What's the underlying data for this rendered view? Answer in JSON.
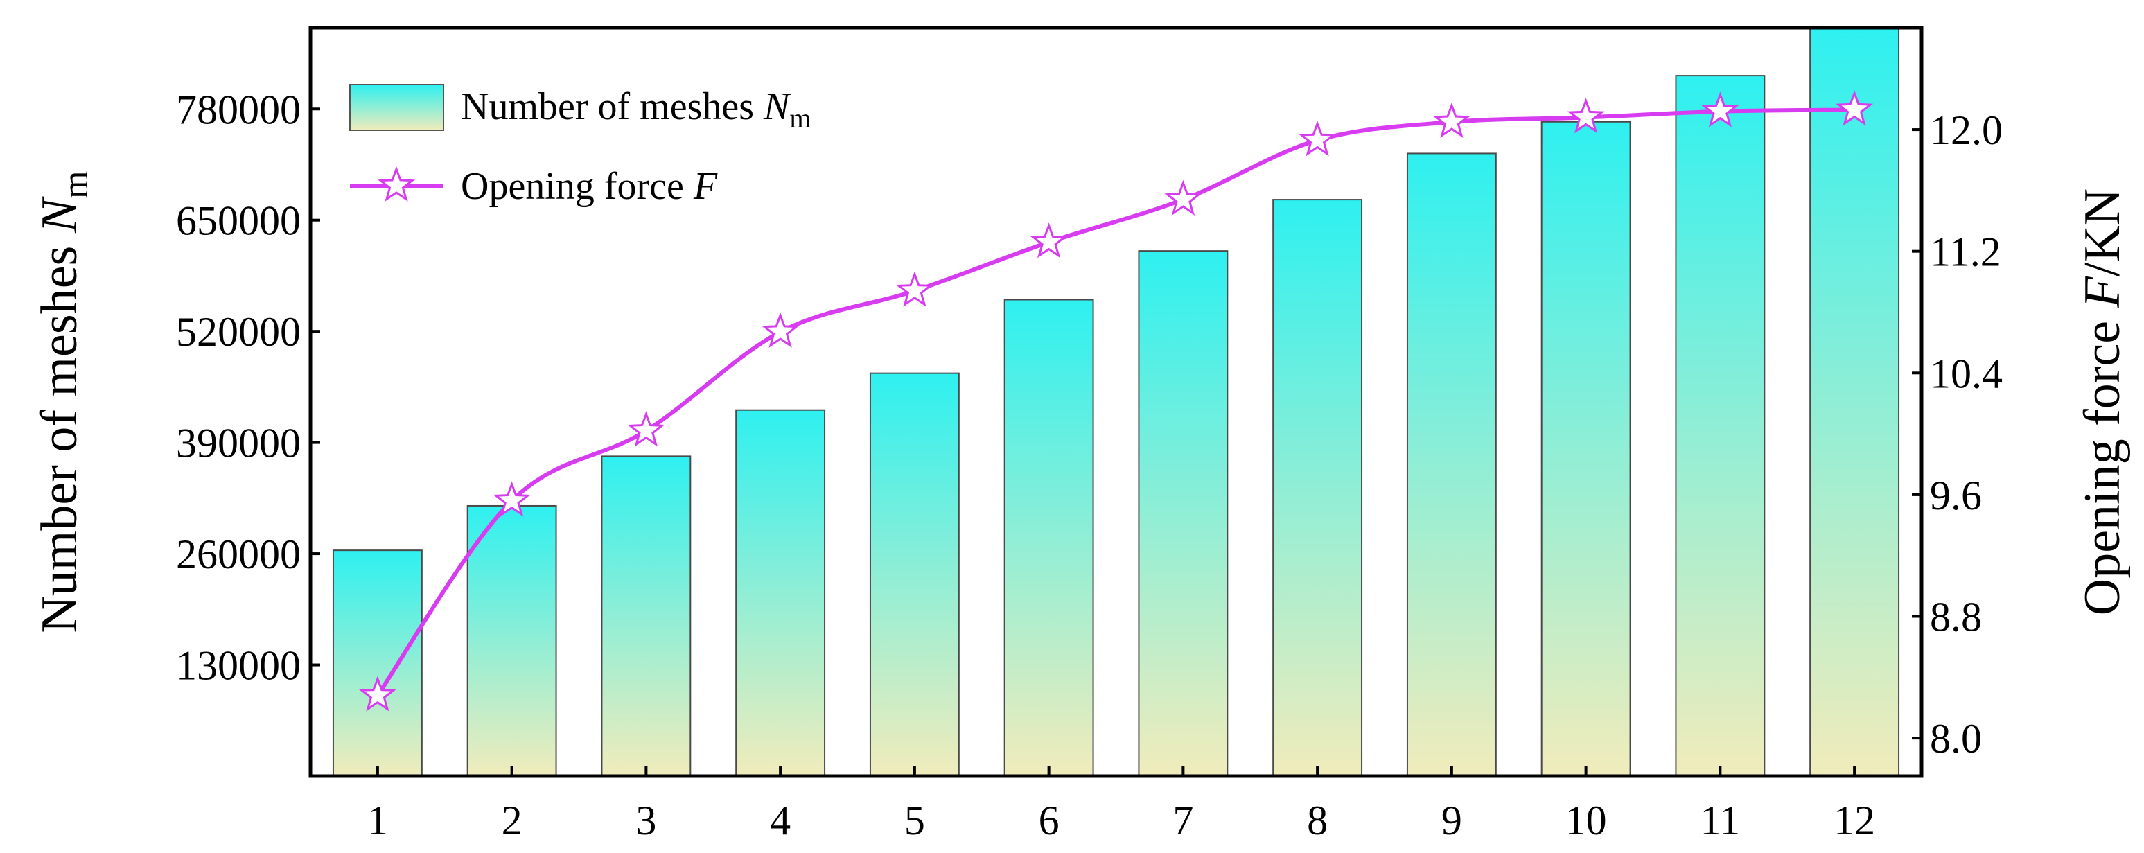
{
  "chart_data": {
    "type": "bar",
    "categories": [
      "1",
      "2",
      "3",
      "4",
      "5",
      "6",
      "7",
      "8",
      "9",
      "10",
      "11",
      "12"
    ],
    "series": [
      {
        "name": "Number of meshes N_m",
        "axis": "left",
        "kind": "bar",
        "values": [
          264000,
          316000,
          374000,
          428000,
          471000,
          557000,
          614000,
          674000,
          728000,
          765000,
          819000,
          875000
        ]
      },
      {
        "name": "Opening force F",
        "axis": "right",
        "kind": "line",
        "marker": "star",
        "values": [
          8.28,
          9.56,
          10.02,
          10.67,
          10.94,
          11.26,
          11.54,
          11.93,
          12.05,
          12.08,
          12.12,
          12.13
        ]
      }
    ],
    "left_axis": {
      "label": "Number of meshes",
      "label_sub": "m",
      "label_var": "N",
      "ticks": [
        "130000",
        "260000",
        "390000",
        "520000",
        "650000",
        "780000"
      ],
      "tick_values": [
        130000,
        260000,
        390000,
        520000,
        650000,
        780000
      ],
      "ylim": [
        0,
        875000
      ]
    },
    "right_axis": {
      "label_prefix": "Opening force ",
      "label_var": "F",
      "label_suffix": "/KN",
      "ticks": [
        "8.0",
        "8.8",
        "9.6",
        "10.4",
        "11.2",
        "12.0"
      ],
      "tick_values": [
        8.0,
        8.8,
        9.6,
        10.4,
        11.2,
        12.0
      ],
      "ylim": [
        7.75,
        12.67
      ]
    },
    "x_axis": {
      "label": ""
    },
    "legend": {
      "placement": "top-left",
      "bar_label": "Number of meshes ",
      "bar_label_var": "N",
      "bar_label_sub": "m",
      "line_label": "Opening force ",
      "line_label_var": "F"
    },
    "grid": false,
    "colors": {
      "bar_top": "#2ef0f0",
      "bar_bottom": "#f1ecbb",
      "line": "#d83cf0",
      "marker_fill": "#ffffff",
      "axis": "#000000"
    }
  }
}
